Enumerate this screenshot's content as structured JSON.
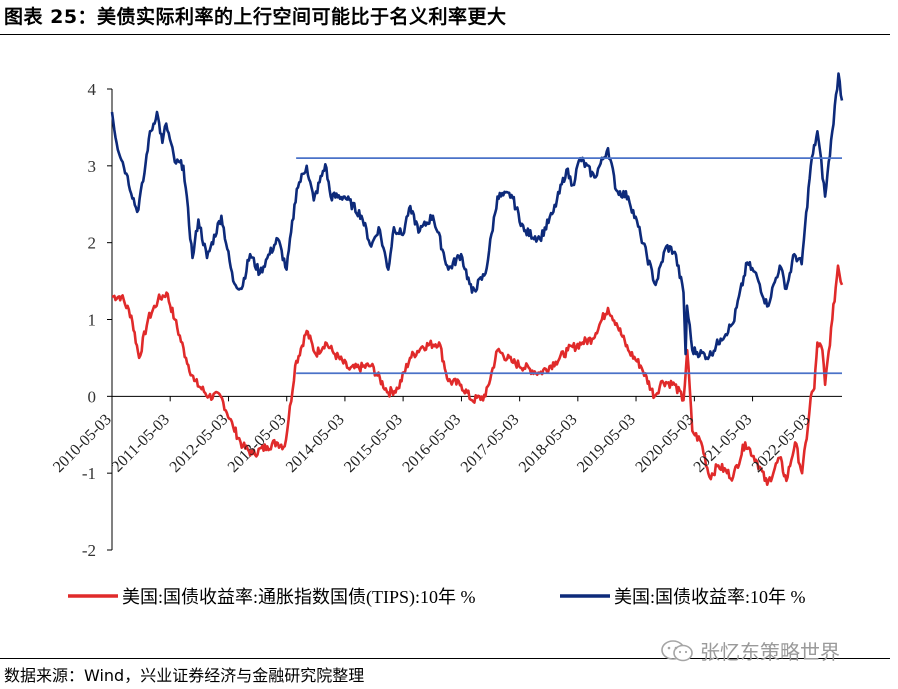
{
  "header": {
    "title": "图表 25：美债实际利率的上行空间可能比于名义利率更大"
  },
  "footer": {
    "source": "数据来源：Wind，兴业证券经济与金融研究院整理"
  },
  "watermark": {
    "text": "张忆东策略世界",
    "icon": "wechat-icon"
  },
  "colors": {
    "real": "#e02a2a",
    "nominal": "#0d2a7a",
    "reference": "#4a72c8"
  },
  "chart_data": {
    "type": "line",
    "title": "",
    "xlabel": "",
    "ylabel": "",
    "ylim": [
      -2,
      4
    ],
    "yticks": [
      -2,
      -1,
      0,
      1,
      2,
      3,
      4
    ],
    "x_range": [
      "2010-05-03",
      "2022-11-15"
    ],
    "xticks": [
      "2010-05-03",
      "2011-05-03",
      "2012-05-03",
      "2013-05-03",
      "2014-05-03",
      "2015-05-03",
      "2016-05-03",
      "2017-05-03",
      "2018-05-03",
      "2019-05-03",
      "2020-05-03",
      "2021-05-03",
      "2022-05-03"
    ],
    "grid": false,
    "legend_position": "bottom",
    "series": [
      {
        "name": "美国:国债收益率:通胀指数国债(TIPS):10年 %",
        "color": "#e02a2a",
        "points": [
          [
            "2010-05-03",
            1.3
          ],
          [
            "2010-07-01",
            1.3
          ],
          [
            "2010-09-01",
            1.05
          ],
          [
            "2010-10-20",
            0.5
          ],
          [
            "2010-12-15",
            1.0
          ],
          [
            "2011-02-15",
            1.25
          ],
          [
            "2011-04-10",
            1.35
          ],
          [
            "2011-06-01",
            1.0
          ],
          [
            "2011-08-10",
            0.5
          ],
          [
            "2011-10-01",
            0.2
          ],
          [
            "2012-01-01",
            0.0
          ],
          [
            "2012-03-15",
            0.0
          ],
          [
            "2012-06-01",
            -0.4
          ],
          [
            "2012-08-01",
            -0.65
          ],
          [
            "2012-10-01",
            -0.75
          ],
          [
            "2013-01-01",
            -0.65
          ],
          [
            "2013-03-01",
            -0.6
          ],
          [
            "2013-04-20",
            -0.65
          ],
          [
            "2013-05-15",
            -0.3
          ],
          [
            "2013-06-25",
            0.4
          ],
          [
            "2013-09-05",
            0.85
          ],
          [
            "2013-11-01",
            0.55
          ],
          [
            "2014-01-01",
            0.7
          ],
          [
            "2014-03-01",
            0.55
          ],
          [
            "2014-06-01",
            0.35
          ],
          [
            "2014-10-15",
            0.4
          ],
          [
            "2015-01-30",
            0.05
          ],
          [
            "2015-04-01",
            0.1
          ],
          [
            "2015-06-15",
            0.5
          ],
          [
            "2015-09-01",
            0.65
          ],
          [
            "2015-12-15",
            0.7
          ],
          [
            "2016-02-10",
            0.2
          ],
          [
            "2016-05-01",
            0.15
          ],
          [
            "2016-07-08",
            -0.05
          ],
          [
            "2016-10-01",
            0.0
          ],
          [
            "2016-12-15",
            0.6
          ],
          [
            "2017-03-15",
            0.45
          ],
          [
            "2017-09-05",
            0.3
          ],
          [
            "2017-12-15",
            0.45
          ],
          [
            "2018-03-01",
            0.6
          ],
          [
            "2018-06-01",
            0.7
          ],
          [
            "2018-08-01",
            0.75
          ],
          [
            "2018-11-08",
            1.15
          ],
          [
            "2019-01-01",
            0.95
          ],
          [
            "2019-03-15",
            0.6
          ],
          [
            "2019-06-01",
            0.4
          ],
          [
            "2019-08-28",
            0.0
          ],
          [
            "2019-10-15",
            0.2
          ],
          [
            "2020-01-01",
            0.15
          ],
          [
            "2020-02-25",
            -0.05
          ],
          [
            "2020-03-19",
            0.6
          ],
          [
            "2020-04-20",
            -0.45
          ],
          [
            "2020-06-15",
            -0.6
          ],
          [
            "2020-08-06",
            -1.05
          ],
          [
            "2020-10-01",
            -0.9
          ],
          [
            "2021-01-01",
            -1.05
          ],
          [
            "2021-03-18",
            -0.6
          ],
          [
            "2021-06-01",
            -0.85
          ],
          [
            "2021-08-03",
            -1.15
          ],
          [
            "2021-10-20",
            -0.8
          ],
          [
            "2021-12-01",
            -1.1
          ],
          [
            "2022-01-25",
            -0.6
          ],
          [
            "2022-03-10",
            -1.0
          ],
          [
            "2022-04-15",
            -0.4
          ],
          [
            "2022-05-03",
            0.0
          ],
          [
            "2022-05-25",
            0.1
          ],
          [
            "2022-06-14",
            0.7
          ],
          [
            "2022-07-15",
            0.6
          ],
          [
            "2022-08-01",
            0.15
          ],
          [
            "2022-09-15",
            1.0
          ],
          [
            "2022-10-21",
            1.7
          ],
          [
            "2022-11-15",
            1.45
          ]
        ]
      },
      {
        "name": "美国:国债收益率:10年 %",
        "color": "#0d2a7a",
        "points": [
          [
            "2010-05-03",
            3.7
          ],
          [
            "2010-06-01",
            3.3
          ],
          [
            "2010-08-01",
            2.9
          ],
          [
            "2010-10-08",
            2.4
          ],
          [
            "2010-11-15",
            2.8
          ],
          [
            "2010-12-20",
            3.35
          ],
          [
            "2011-02-09",
            3.7
          ],
          [
            "2011-03-15",
            3.3
          ],
          [
            "2011-04-08",
            3.55
          ],
          [
            "2011-06-01",
            3.05
          ],
          [
            "2011-07-25",
            3.0
          ],
          [
            "2011-09-20",
            1.8
          ],
          [
            "2011-10-27",
            2.3
          ],
          [
            "2011-12-20",
            1.8
          ],
          [
            "2012-03-19",
            2.35
          ],
          [
            "2012-06-01",
            1.5
          ],
          [
            "2012-07-24",
            1.4
          ],
          [
            "2012-09-15",
            1.85
          ],
          [
            "2012-11-15",
            1.6
          ],
          [
            "2013-01-01",
            1.8
          ],
          [
            "2013-03-08",
            2.05
          ],
          [
            "2013-05-02",
            1.65
          ],
          [
            "2013-07-05",
            2.7
          ],
          [
            "2013-09-05",
            3.0
          ],
          [
            "2013-10-20",
            2.55
          ],
          [
            "2013-12-31",
            3.02
          ],
          [
            "2014-02-03",
            2.6
          ],
          [
            "2014-05-01",
            2.6
          ],
          [
            "2014-08-15",
            2.35
          ],
          [
            "2014-10-15",
            1.95
          ],
          [
            "2014-12-01",
            2.2
          ],
          [
            "2015-01-30",
            1.65
          ],
          [
            "2015-03-06",
            2.2
          ],
          [
            "2015-05-01",
            2.1
          ],
          [
            "2015-06-10",
            2.45
          ],
          [
            "2015-08-15",
            2.15
          ],
          [
            "2015-11-06",
            2.35
          ],
          [
            "2016-02-11",
            1.65
          ],
          [
            "2016-05-01",
            1.85
          ],
          [
            "2016-07-08",
            1.35
          ],
          [
            "2016-10-01",
            1.6
          ],
          [
            "2016-12-15",
            2.6
          ],
          [
            "2017-03-13",
            2.62
          ],
          [
            "2017-06-01",
            2.15
          ],
          [
            "2017-09-07",
            2.05
          ],
          [
            "2017-12-01",
            2.4
          ],
          [
            "2018-02-21",
            2.95
          ],
          [
            "2018-04-01",
            2.75
          ],
          [
            "2018-05-17",
            3.1
          ],
          [
            "2018-08-15",
            2.85
          ],
          [
            "2018-11-08",
            3.23
          ],
          [
            "2018-12-31",
            2.68
          ],
          [
            "2019-03-15",
            2.6
          ],
          [
            "2019-06-01",
            2.1
          ],
          [
            "2019-09-03",
            1.45
          ],
          [
            "2019-11-08",
            1.95
          ],
          [
            "2020-01-01",
            1.88
          ],
          [
            "2020-02-25",
            1.35
          ],
          [
            "2020-03-09",
            0.55
          ],
          [
            "2020-03-18",
            1.18
          ],
          [
            "2020-04-20",
            0.6
          ],
          [
            "2020-08-04",
            0.52
          ],
          [
            "2020-10-15",
            0.75
          ],
          [
            "2021-01-01",
            0.95
          ],
          [
            "2021-03-31",
            1.74
          ],
          [
            "2021-06-01",
            1.55
          ],
          [
            "2021-08-03",
            1.17
          ],
          [
            "2021-10-21",
            1.7
          ],
          [
            "2021-12-01",
            1.4
          ],
          [
            "2022-01-20",
            1.85
          ],
          [
            "2022-03-07",
            1.72
          ],
          [
            "2022-05-03",
            3.0
          ],
          [
            "2022-06-14",
            3.45
          ],
          [
            "2022-08-01",
            2.6
          ],
          [
            "2022-09-15",
            3.45
          ],
          [
            "2022-10-24",
            4.2
          ],
          [
            "2022-11-15",
            3.85
          ]
        ]
      }
    ],
    "reference_lines": [
      {
        "label": "",
        "y": 3.1,
        "x_start": "2013-07-01",
        "x_end": "2022-11-15"
      },
      {
        "label": "",
        "y": 0.3,
        "x_start": "2013-07-01",
        "x_end": "2022-11-15"
      }
    ]
  }
}
